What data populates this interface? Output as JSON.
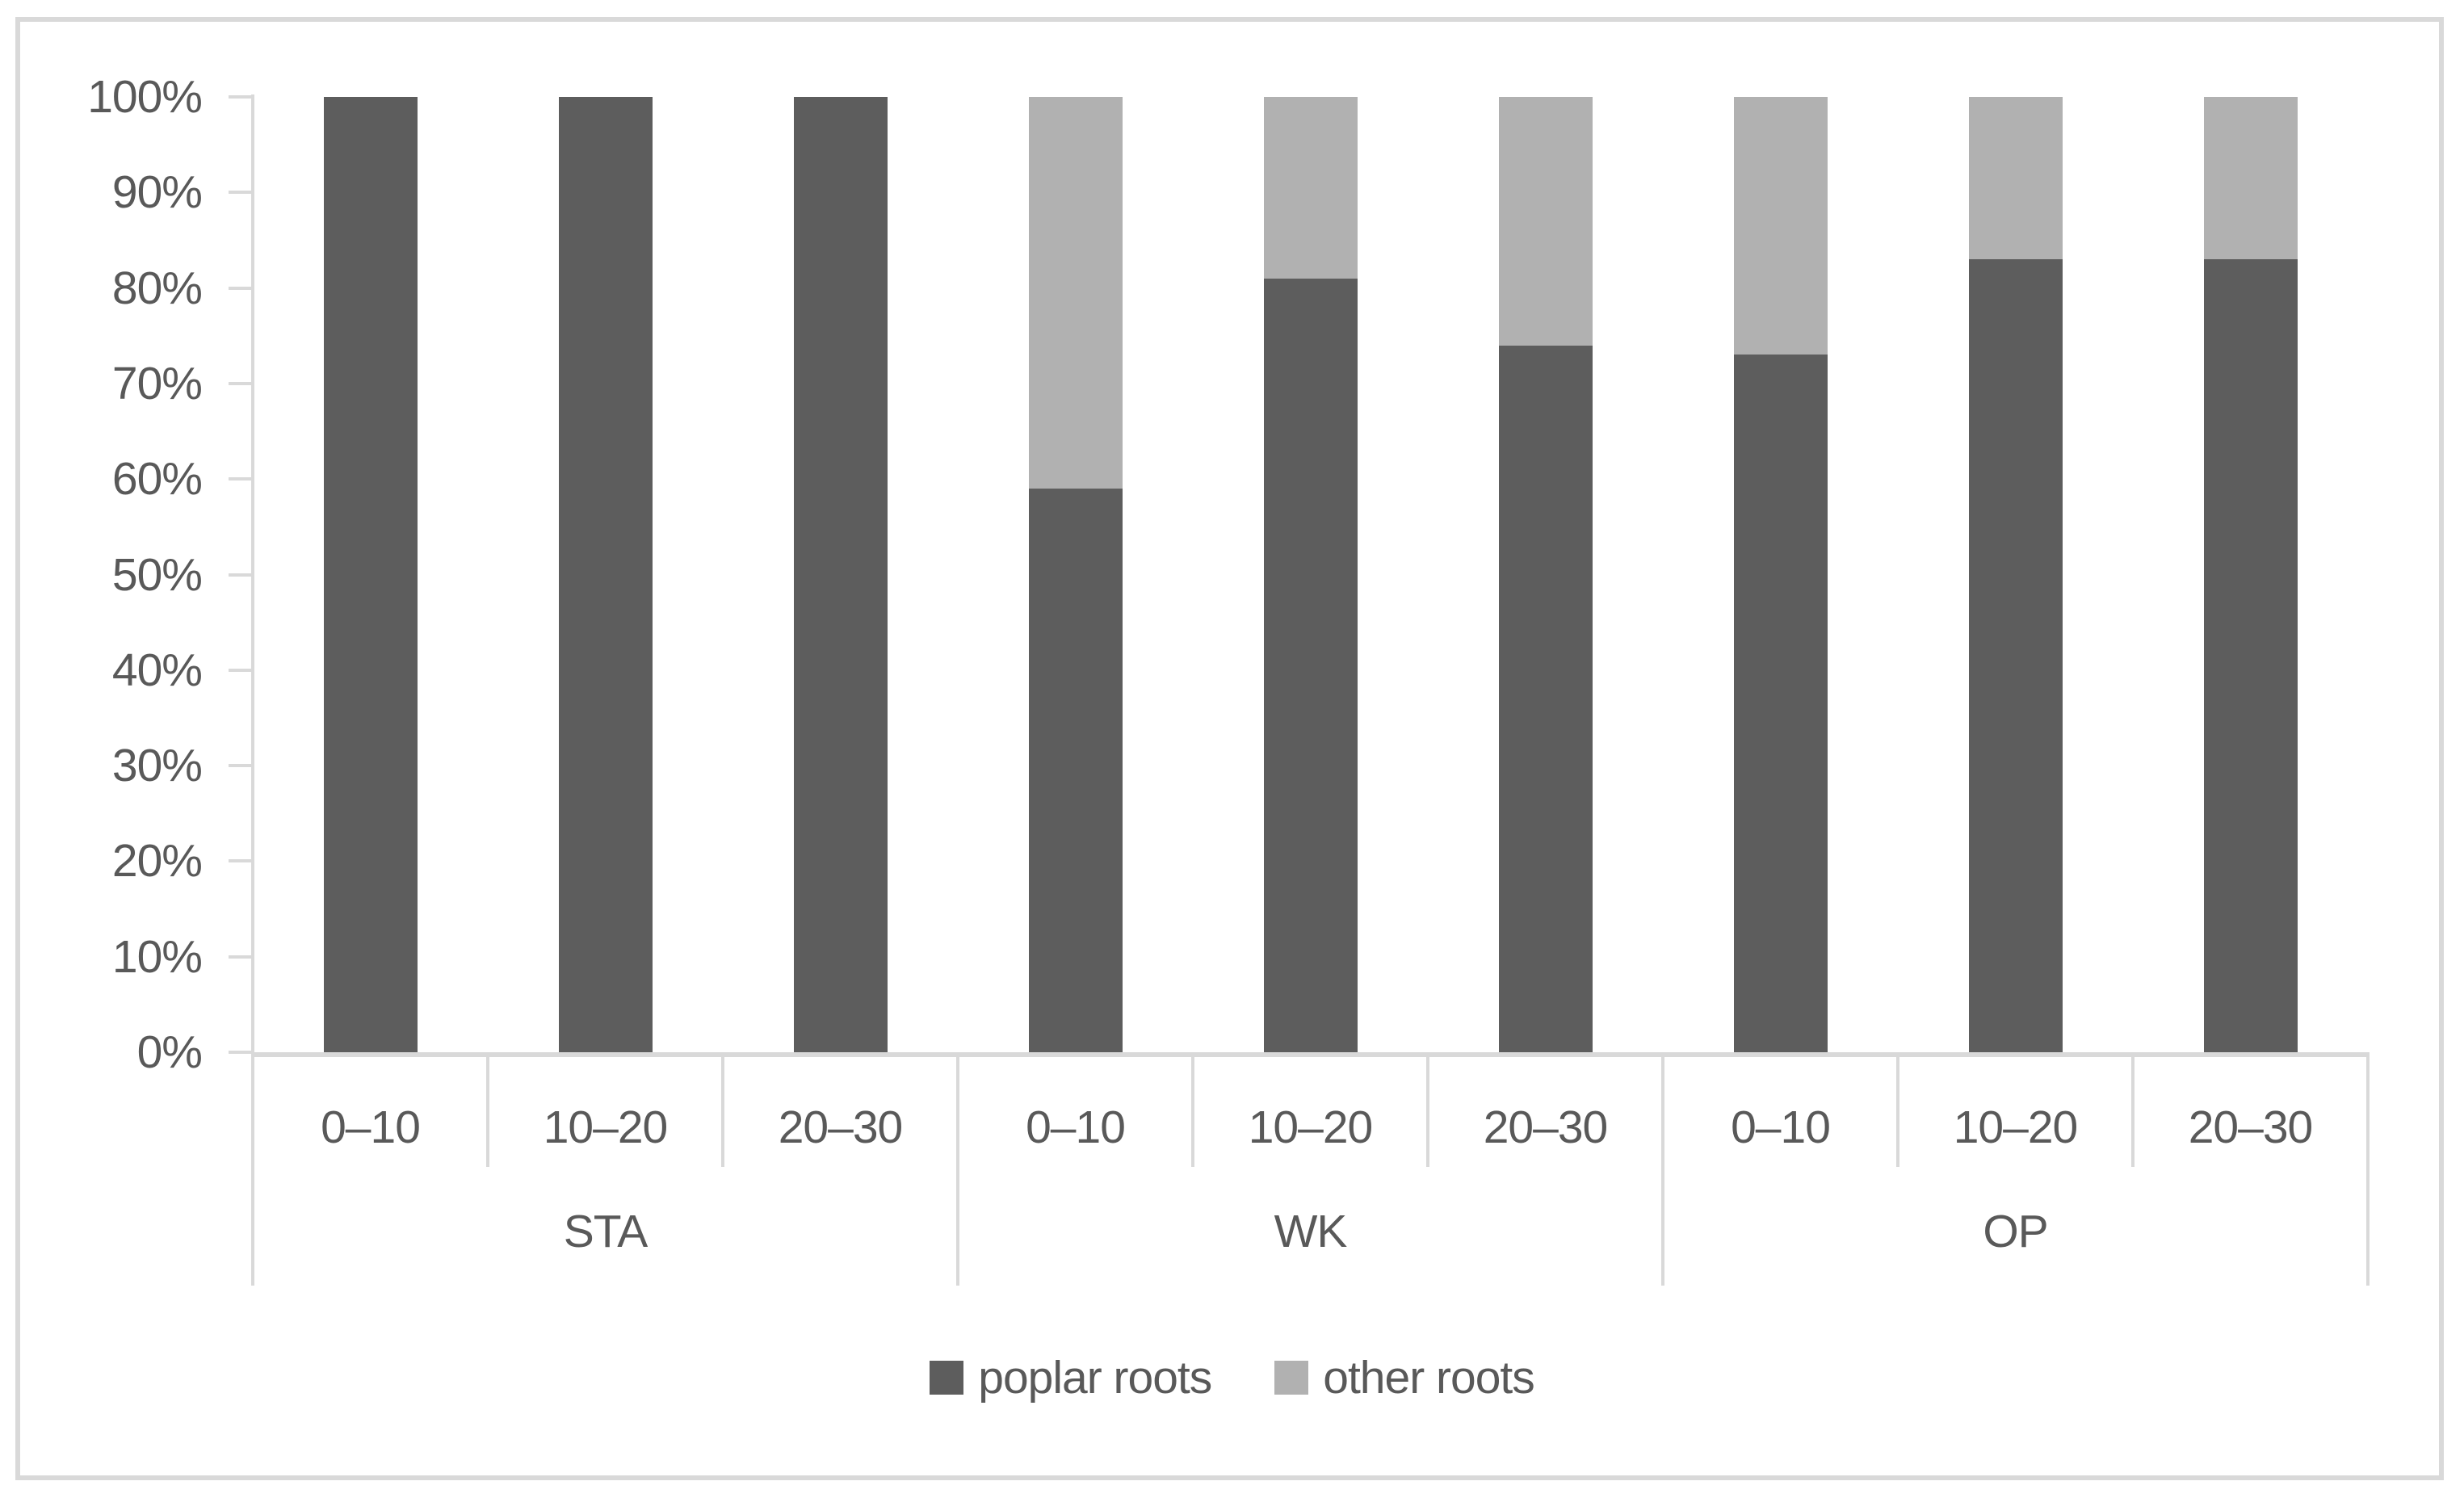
{
  "figure": {
    "background": "#ffffff",
    "border_color": "#d9d9d9"
  },
  "chart_data": {
    "type": "bar",
    "subtype": "stacked-100-percent-column",
    "title": "",
    "xlabel": "",
    "ylabel": "",
    "ylim": [
      0,
      100
    ],
    "grid": false,
    "legend_position": "bottom",
    "axis_color": "#d9d9d9",
    "text_color": "#595959",
    "y_ticks": [
      "100%",
      "90%",
      "80%",
      "70%",
      "60%",
      "50%",
      "40%",
      "30%",
      "20%",
      "10%",
      "0%"
    ],
    "groups": [
      {
        "label": "STA",
        "categories": [
          "0–10",
          "10–20",
          "20–30"
        ]
      },
      {
        "label": "WK",
        "categories": [
          "0–10",
          "10–20",
          "20–30"
        ]
      },
      {
        "label": "OP",
        "categories": [
          "0–10",
          "10–20",
          "20–30"
        ]
      }
    ],
    "categories_flat": [
      "0–10",
      "10–20",
      "20–30",
      "0–10",
      "10–20",
      "20–30",
      "0–10",
      "10–20",
      "20–30"
    ],
    "series": [
      {
        "name": "poplar roots",
        "color": "#5d5d5d",
        "values": [
          100,
          100,
          100,
          59,
          81,
          74,
          73,
          83,
          83
        ]
      },
      {
        "name": "other roots",
        "color": "#b1b1b1",
        "values": [
          0,
          0,
          0,
          41,
          19,
          26,
          27,
          17,
          17
        ]
      }
    ]
  }
}
